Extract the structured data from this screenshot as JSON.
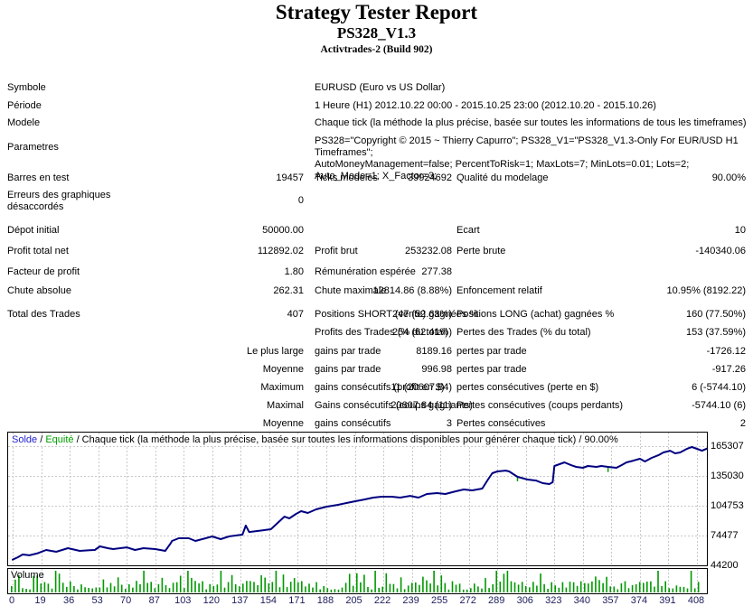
{
  "title": "Strategy Tester Report",
  "subtitle": "PS328_V1.3",
  "build": "Activtrades-2 (Build 902)",
  "rows": [
    {
      "l1": "Symbole",
      "l2": "EURUSD (Euro vs US Dollar)"
    },
    {
      "l1": "Période",
      "l2": "1 Heure (H1) 2012.10.22 00:00 - 2015.10.25 23:00 (2012.10.20 - 2015.10.26)"
    },
    {
      "l1": "Modele",
      "l2": "Chaque tick (la méthode la plus précise, basée sur toutes les informations de tous les timeframes)"
    },
    {
      "l1": "Parametres",
      "l2": "PS328=\"Copyright © 2015 ~ Thierry Capurro\"; PS328_V1=\"PS328_V1.3-Only For EUR/USD H1 Timeframes\";\nAutoMoneyManagement=false; PercentToRisk=1; MaxLots=7; MinLots=0.01; Lots=2; Auto_Mode=1; X_Factor=3;"
    },
    {
      "l1": "Barres en test",
      "v1": "19457",
      "l2": "Ticks modelés",
      "v2": "39924692",
      "l3": "Qualité du modelage",
      "v3": "90.00%"
    },
    {
      "l1": "Erreurs des graphiques désaccordés",
      "v1": "0"
    },
    {
      "l1": "Dépot initial",
      "v1": "50000.00",
      "l3": "Ecart",
      "v3": "10"
    },
    {
      "l1": "Profit total net",
      "v1": "112892.02",
      "l2": "Profit brut",
      "v2": "253232.08",
      "l3": "Perte brute",
      "v3": "-140340.06"
    },
    {
      "l1": "Facteur de profit",
      "v1": "1.80",
      "l2": "Rémunération espérée",
      "v2": "277.38"
    },
    {
      "l1": "Chute absolue",
      "v1": "262.31",
      "l2": "Chute maximale",
      "v2": "12814.86 (8.88%)",
      "l3": "Enfoncement relatif",
      "v3": "10.95% (8192.22)"
    },
    {
      "l1": "Total des Trades",
      "v1": "407",
      "l2": "Positions SHORT (vente) gagnées %",
      "v2": "247 (52.63%)",
      "l3": "Positions LONG (achat) gagnées %",
      "v3": "160 (77.50%)"
    },
    {
      "l2": "Profits des Trades (% du total)",
      "v2": "254 (62.41%)",
      "l3": "Pertes des Trades (% du total)",
      "v3": "153 (37.59%)"
    },
    {
      "v1": "Le plus large",
      "l2": "gains par trade",
      "v2": "8189.16",
      "l3": "pertes par trade",
      "v3": "-1726.12"
    },
    {
      "v1": "Moyenne",
      "l2": "gains par trade",
      "v2": "996.98",
      "l3": "pertes par trade",
      "v3": "-917.26"
    },
    {
      "v1": "Maximum",
      "l2": "gains consécutifs (profit en $)",
      "v2": "11 (20607.84)",
      "l3": "pertes consécutives (perte en $)",
      "v3": "6 (-5744.10)"
    },
    {
      "v1": "Maximal",
      "l2": "Gains consécutifs (coups gagnants)",
      "v2": "20607.84 (11)",
      "l3": "Pertes consécutives (coups perdants)",
      "v3": "-5744.10 (6)"
    },
    {
      "v1": "Moyenne",
      "l2": "gains consécutifs",
      "v2": "3",
      "l3": "Pertes consécutives",
      "v3": "2"
    }
  ],
  "chart_data": {
    "type": "line",
    "title": "Solde / Equité / Chaque tick (la méthode la plus précise, basée sur toutes les informations disponibles pour générer chaque tick) / 90.00%",
    "legend": {
      "solde": "Solde",
      "sep": " / ",
      "equite": "Equité",
      "rest": " / Chaque tick (la méthode la plus précise, basée sur toutes les informations disponibles pour générer chaque tick) / 90.00%"
    },
    "x_ticks": [
      0,
      19,
      36,
      53,
      70,
      87,
      103,
      120,
      137,
      154,
      171,
      188,
      205,
      222,
      239,
      255,
      272,
      289,
      306,
      323,
      340,
      357,
      374,
      391,
      408
    ],
    "y_ticks": [
      165307,
      135030,
      104753,
      74477,
      44200
    ],
    "xlim": [
      0,
      414
    ],
    "ylim": [
      44200,
      179100
    ],
    "grid": true,
    "line_color": "#000080",
    "equity_color": "#00A000",
    "solde_label_color": "#2222CC",
    "series": [
      {
        "name": "Solde",
        "points": [
          [
            0,
            50000
          ],
          [
            3,
            52400
          ],
          [
            6,
            55200
          ],
          [
            10,
            54400
          ],
          [
            15,
            56500
          ],
          [
            20,
            59800
          ],
          [
            26,
            58000
          ],
          [
            33,
            61600
          ],
          [
            40,
            58900
          ],
          [
            46,
            59500
          ],
          [
            49,
            59800
          ],
          [
            52,
            63500
          ],
          [
            57,
            61500
          ],
          [
            60,
            60700
          ],
          [
            68,
            62500
          ],
          [
            73,
            59800
          ],
          [
            78,
            61600
          ],
          [
            85,
            60700
          ],
          [
            91,
            58900
          ],
          [
            94,
            66000
          ],
          [
            95,
            69000
          ],
          [
            99,
            71700
          ],
          [
            105,
            71700
          ],
          [
            109,
            69000
          ],
          [
            115,
            71700
          ],
          [
            119,
            73600
          ],
          [
            124,
            70800
          ],
          [
            129,
            73600
          ],
          [
            137,
            75400
          ],
          [
            139,
            84600
          ],
          [
            141,
            78100
          ],
          [
            148,
            79500
          ],
          [
            154,
            80900
          ],
          [
            158,
            87300
          ],
          [
            162,
            93700
          ],
          [
            165,
            91900
          ],
          [
            169,
            96500
          ],
          [
            172,
            99300
          ],
          [
            176,
            97400
          ],
          [
            181,
            101100
          ],
          [
            187,
            103800
          ],
          [
            194,
            105700
          ],
          [
            199,
            107500
          ],
          [
            204,
            109300
          ],
          [
            210,
            111200
          ],
          [
            215,
            113000
          ],
          [
            220,
            113900
          ],
          [
            226,
            113900
          ],
          [
            231,
            113000
          ],
          [
            237,
            114800
          ],
          [
            242,
            113000
          ],
          [
            247,
            116700
          ],
          [
            253,
            117600
          ],
          [
            258,
            116700
          ],
          [
            264,
            119400
          ],
          [
            269,
            121300
          ],
          [
            274,
            120400
          ],
          [
            280,
            122200
          ],
          [
            283,
            130400
          ],
          [
            286,
            137800
          ],
          [
            289,
            139600
          ],
          [
            294,
            140500
          ],
          [
            296,
            139600
          ],
          [
            301,
            134100
          ],
          [
            307,
            131400
          ],
          [
            312,
            130400
          ],
          [
            316,
            127700
          ],
          [
            320,
            126800
          ],
          [
            322,
            128600
          ],
          [
            323,
            145100
          ],
          [
            326,
            147000
          ],
          [
            329,
            148800
          ],
          [
            333,
            146000
          ],
          [
            336,
            144200
          ],
          [
            340,
            143300
          ],
          [
            343,
            145100
          ],
          [
            348,
            144200
          ],
          [
            351,
            145100
          ],
          [
            355,
            144200
          ],
          [
            360,
            143300
          ],
          [
            363,
            146000
          ],
          [
            366,
            148800
          ],
          [
            370,
            150600
          ],
          [
            374,
            152500
          ],
          [
            377,
            149700
          ],
          [
            381,
            153400
          ],
          [
            385,
            156100
          ],
          [
            388,
            158900
          ],
          [
            392,
            160700
          ],
          [
            395,
            158000
          ],
          [
            398,
            158900
          ],
          [
            402,
            162600
          ],
          [
            405,
            164400
          ],
          [
            408,
            162600
          ],
          [
            411,
            160700
          ],
          [
            414,
            162892
          ]
        ]
      }
    ],
    "equity_ticks": [
      [
        301,
        4500
      ],
      [
        355,
        5200
      ]
    ]
  },
  "volume": {
    "label": "Volume",
    "bar_color": "#009900",
    "bar_count": 188,
    "seed": 20151025
  }
}
